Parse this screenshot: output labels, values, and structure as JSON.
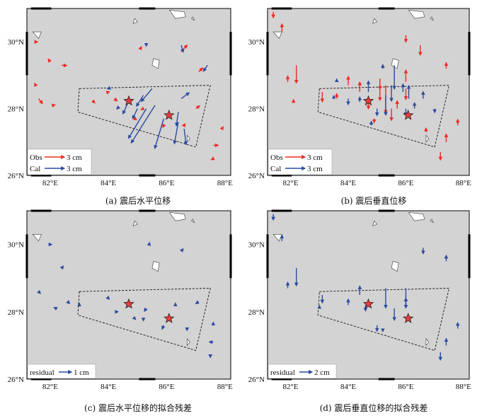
{
  "colors": {
    "obs": "#ee2a24",
    "cal": "#2b4aa0",
    "residual": "#2b4aa0",
    "land": "#d3d3d3",
    "star": "#e83b3b"
  },
  "axes": {
    "lon_labels": [
      "82°E",
      "84°E",
      "86°E",
      "88°E"
    ],
    "lat_labels": [
      "30°N",
      "28°N",
      "26°N"
    ],
    "lon_range": [
      81.2,
      88.2
    ],
    "lat_range": [
      26.0,
      31.0
    ]
  },
  "epicenters": [
    {
      "lon": 84.7,
      "lat": 28.23
    },
    {
      "lon": 86.08,
      "lat": 27.8
    }
  ],
  "fault_box": [
    [
      83.0,
      28.6
    ],
    [
      87.5,
      28.7
    ],
    [
      87.0,
      26.85
    ],
    [
      82.95,
      27.9
    ]
  ],
  "panels": [
    {
      "id": "a",
      "caption": "(a) 震后水平位移",
      "legend": [
        {
          "label": "Obs",
          "value": "3 cm",
          "color": "obs"
        },
        {
          "label": "Cal",
          "value": "3 cm",
          "color": "cal"
        }
      ]
    },
    {
      "id": "b",
      "caption": "(b)  震后垂直位移",
      "legend": [
        {
          "label": "Obs",
          "value": "3 cm",
          "color": "obs"
        },
        {
          "label": "Cal",
          "value": "3 cm",
          "color": "cal"
        }
      ]
    },
    {
      "id": "c",
      "caption": "(c) 震后水平位移的拟合残差",
      "legend": [
        {
          "label": "residual",
          "value": "1 cm",
          "color": "residual"
        }
      ]
    },
    {
      "id": "d",
      "caption": "(d)  震后垂直位移的拟合残差",
      "legend": [
        {
          "label": "residual",
          "value": "2 cm",
          "color": "residual"
        }
      ]
    }
  ],
  "vectors": {
    "a_obs": [
      [
        81.5,
        30.0,
        0.1,
        0.0
      ],
      [
        82.0,
        29.4,
        -0.1,
        0.15
      ],
      [
        82.4,
        29.3,
        0.25,
        -0.02
      ],
      [
        81.5,
        28.7,
        -0.05,
        0.1
      ],
      [
        81.6,
        28.3,
        0.2,
        -0.25
      ],
      [
        82.1,
        28.1,
        0.1,
        0.02
      ],
      [
        83.5,
        28.2,
        0.05,
        -0.05
      ],
      [
        84.2,
        28.3,
        0.15,
        -0.12
      ],
      [
        85.1,
        29.8,
        0.05,
        0.1
      ],
      [
        86.5,
        29.7,
        0.3,
        0.35
      ],
      [
        87.1,
        29.1,
        0.2,
        0.2
      ],
      [
        87.0,
        28.0,
        0.2,
        0.15
      ],
      [
        87.9,
        27.4,
        0.06,
        0.1
      ],
      [
        87.6,
        26.9,
        0.25,
        0.0
      ],
      [
        87.6,
        26.5,
        -0.1,
        -0.05
      ],
      [
        86.6,
        27.5,
        0.05,
        0.08
      ],
      [
        84.0,
        28.5,
        0.05,
        0.02
      ],
      [
        85.9,
        27.5,
        -0.05,
        -0.1
      ],
      [
        85.2,
        28.0,
        -0.12,
        -0.05
      ],
      [
        84.9,
        27.7,
        0.1,
        -0.05
      ]
    ],
    "a_cal": [
      [
        84.7,
        28.23,
        -0.3,
        -0.65
      ],
      [
        85.0,
        28.0,
        -0.25,
        -0.5
      ],
      [
        85.2,
        28.4,
        -0.35,
        -0.55
      ],
      [
        85.5,
        28.6,
        -0.55,
        -0.65
      ],
      [
        85.3,
        28.0,
        -0.9,
        -1.5
      ],
      [
        85.6,
        28.1,
        -1.2,
        -1.9
      ],
      [
        85.9,
        27.7,
        -0.45,
        -1.5
      ],
      [
        86.4,
        27.6,
        -0.2,
        -1.1
      ],
      [
        86.6,
        27.4,
        0.1,
        -0.8
      ],
      [
        86.4,
        27.9,
        -0.1,
        -0.7
      ],
      [
        86.5,
        28.3,
        0.4,
        0.3
      ],
      [
        87.4,
        29.3,
        -0.2,
        -0.3
      ],
      [
        86.5,
        29.9,
        0.1,
        -0.35
      ],
      [
        85.3,
        29.9,
        0.0,
        -0.05
      ],
      [
        84.0,
        28.6,
        -0.05,
        -0.02
      ],
      [
        84.3,
        28.0,
        -0.02,
        -0.02
      ]
    ],
    "b_obs": [
      [
        81.4,
        30.9,
        0.0,
        -0.3
      ],
      [
        81.7,
        30.3,
        0.0,
        0.4
      ],
      [
        81.9,
        28.8,
        0.0,
        0.3
      ],
      [
        82.2,
        29.3,
        0.0,
        -0.9
      ],
      [
        83.1,
        28.5,
        0.0,
        -0.5
      ],
      [
        84.4,
        28.5,
        0.0,
        0.5
      ],
      [
        84.7,
        28.2,
        0.0,
        -0.35
      ],
      [
        85.1,
        28.9,
        0.0,
        -1.1
      ],
      [
        85.3,
        28.7,
        0.0,
        -1.4
      ],
      [
        85.7,
        28.0,
        0.0,
        0.4
      ],
      [
        86.0,
        28.8,
        0.0,
        0.6
      ],
      [
        86.0,
        28.6,
        0.0,
        -0.55
      ],
      [
        86.0,
        30.2,
        0.0,
        -0.35
      ],
      [
        86.5,
        29.9,
        0.0,
        -0.5
      ],
      [
        87.4,
        29.2,
        0.0,
        0.3
      ],
      [
        87.4,
        27.0,
        0.0,
        0.4
      ],
      [
        87.8,
        27.5,
        0.0,
        0.3
      ],
      [
        87.2,
        26.7,
        0.0,
        -0.4
      ],
      [
        84.0,
        28.7,
        0.0,
        0.45
      ],
      [
        83.6,
        28.3,
        0.0,
        0.25
      ],
      [
        84.9,
        27.7,
        0.0,
        -0.2
      ],
      [
        85.5,
        28.0,
        0.0,
        -0.6
      ],
      [
        85.1,
        28.5,
        0.0,
        0.35
      ],
      [
        82.1,
        28.2,
        0.0,
        0.12
      ],
      [
        86.7,
        27.3,
        0.0,
        0.2
      ]
    ],
    "b_cal": [
      [
        84.0,
        28.3,
        0.0,
        -0.3
      ],
      [
        84.4,
        28.2,
        0.0,
        0.25
      ],
      [
        84.7,
        28.5,
        0.0,
        0.55
      ],
      [
        85.0,
        28.0,
        0.0,
        -0.35
      ],
      [
        85.5,
        28.7,
        0.0,
        -0.8
      ],
      [
        85.6,
        29.3,
        0.0,
        -1.2
      ],
      [
        85.3,
        28.4,
        0.0,
        -1.0
      ],
      [
        85.9,
        28.5,
        0.0,
        0.4
      ],
      [
        86.1,
        28.3,
        0.0,
        0.65
      ],
      [
        86.0,
        28.0,
        0.0,
        -0.35
      ],
      [
        86.3,
        28.0,
        0.0,
        0.3
      ],
      [
        86.6,
        28.3,
        0.0,
        0.35
      ],
      [
        83.5,
        28.3,
        0.0,
        0.15
      ],
      [
        83.6,
        28.8,
        0.0,
        0.15
      ],
      [
        85.2,
        29.2,
        0.0,
        0.2
      ],
      [
        84.8,
        27.5,
        0.0,
        0.2
      ],
      [
        87.0,
        28.0,
        0.0,
        -0.2
      ]
    ],
    "c_res": [
      [
        82.0,
        30.0,
        0.08,
        0.0
      ],
      [
        82.4,
        29.3,
        0.08,
        0.1
      ],
      [
        81.6,
        28.6,
        0.1,
        -0.1
      ],
      [
        82.2,
        28.1,
        -0.1,
        0.05
      ],
      [
        82.6,
        28.3,
        0.1,
        -0.1
      ],
      [
        83.0,
        28.2,
        0.0,
        0.1
      ],
      [
        84.0,
        28.4,
        0.05,
        -0.05
      ],
      [
        84.3,
        28.0,
        0.05,
        0.0
      ],
      [
        85.3,
        28.1,
        -0.1,
        -0.15
      ],
      [
        85.9,
        27.6,
        -0.08,
        -0.2
      ],
      [
        86.3,
        28.2,
        0.0,
        0.1
      ],
      [
        86.7,
        27.5,
        0.0,
        -0.1
      ],
      [
        87.1,
        28.3,
        -0.15,
        -0.1
      ],
      [
        87.6,
        27.6,
        0.0,
        0.15
      ],
      [
        87.6,
        27.1,
        -0.2,
        0.0
      ],
      [
        87.5,
        26.7,
        0.0,
        -0.1
      ],
      [
        85.4,
        30.0,
        0.02,
        0.1
      ],
      [
        86.5,
        29.8,
        0.1,
        0.12
      ],
      [
        85.2,
        27.8,
        0.0,
        -0.12
      ],
      [
        84.9,
        27.8,
        0.05,
        -0.05
      ]
    ],
    "d_res": [
      [
        81.4,
        30.9,
        0.0,
        -0.3
      ],
      [
        81.7,
        30.1,
        0.0,
        0.3
      ],
      [
        81.9,
        28.7,
        0.0,
        0.3
      ],
      [
        82.2,
        29.3,
        0.0,
        -0.9
      ],
      [
        83.1,
        28.5,
        0.0,
        -0.4
      ],
      [
        84.0,
        28.2,
        0.0,
        0.3
      ],
      [
        84.4,
        28.5,
        0.0,
        0.45
      ],
      [
        84.6,
        28.2,
        0.0,
        -0.3
      ],
      [
        85.3,
        28.7,
        0.0,
        -1.0
      ],
      [
        85.6,
        28.1,
        0.0,
        -0.6
      ],
      [
        86.0,
        28.7,
        0.0,
        -1.0
      ],
      [
        86.0,
        28.2,
        0.0,
        0.35
      ],
      [
        85.0,
        27.6,
        0.0,
        -0.3
      ],
      [
        86.6,
        29.9,
        0.0,
        -0.3
      ],
      [
        87.4,
        29.5,
        0.0,
        0.3
      ],
      [
        87.8,
        27.5,
        0.0,
        0.3
      ],
      [
        87.4,
        27.0,
        0.0,
        0.35
      ],
      [
        87.2,
        26.8,
        0.0,
        -0.4
      ],
      [
        85.2,
        27.5,
        0.0,
        -0.15
      ],
      [
        83.0,
        28.1,
        0.0,
        0.15
      ]
    ]
  }
}
